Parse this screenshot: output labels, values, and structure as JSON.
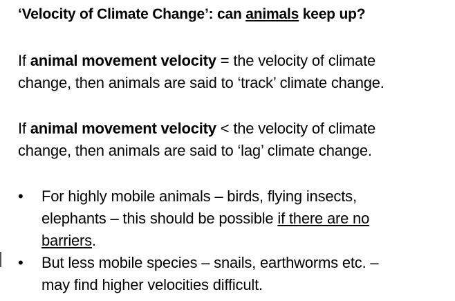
{
  "title": {
    "part1": "‘Velocity of Climate Change’: can ",
    "underlined": "animals",
    "part2": " keep up?"
  },
  "paragraph1": {
    "prefix": "If ",
    "bold": "animal movement velocity",
    "line1_rest": " = the velocity of climate",
    "line2": "change, then animals are said to ‘track’ climate change."
  },
  "paragraph2": {
    "prefix": "If ",
    "bold": "animal movement velocity",
    "line1_rest": " < the velocity of climate",
    "line2": "change, then animals are said to ‘lag’ climate change."
  },
  "bullets": [
    {
      "marker": "•",
      "line1": "For highly mobile animals – birds, flying insects,",
      "line2_plain": "elephants – this should be possible ",
      "line2_underlined": "if there are no",
      "line3_underlined": "barriers",
      "line3_plain": "."
    },
    {
      "marker": "•",
      "line1": "But less mobile species – snails, earthworms etc. –",
      "line2": "may find higher velocities difficult."
    }
  ]
}
